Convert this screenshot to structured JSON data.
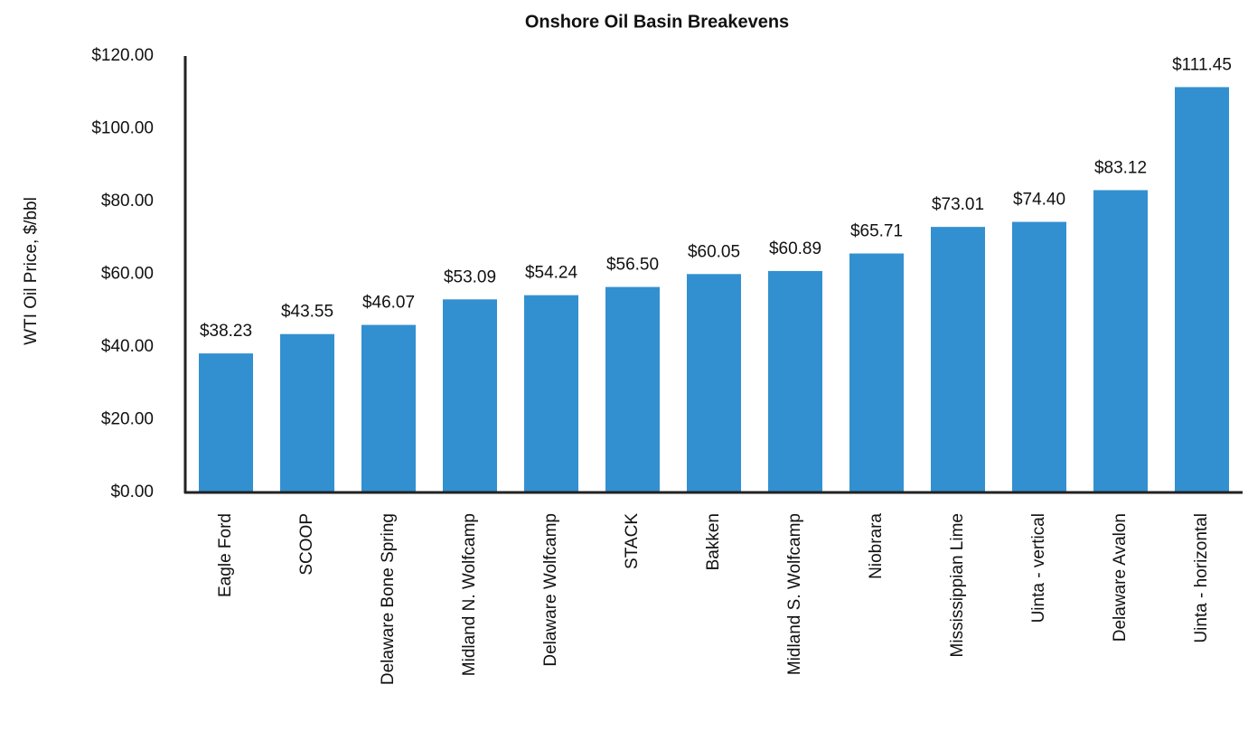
{
  "chart_data": {
    "type": "bar",
    "title": "Onshore Oil Basin Breakevens",
    "y_label": "WTI Oil Price, $/bbl",
    "categories": [
      "Eagle Ford",
      "SCOOP",
      "Delaware Bone Spring",
      "Midland N. Wolfcamp",
      "Delaware Wolfcamp",
      "STACK",
      "Bakken",
      "Midland S. Wolfcamp",
      "Niobrara",
      "Mississippian Lime",
      "Uinta - vertical",
      "Delaware Avalon",
      "Uinta - horizontal"
    ],
    "values": [
      38.23,
      43.55,
      46.07,
      53.09,
      54.24,
      56.5,
      60.05,
      60.89,
      65.71,
      73.01,
      74.4,
      83.12,
      111.45
    ],
    "value_labels": [
      "$38.23",
      "$43.55",
      "$46.07",
      "$53.09",
      "$54.24",
      "$56.50",
      "$60.05",
      "$60.89",
      "$65.71",
      "$73.01",
      "$74.40",
      "$83.12",
      "$111.45"
    ],
    "color": "#3390d0",
    "ylim": [
      0,
      120
    ],
    "yticks": [
      {
        "value": 0,
        "label": "$0.00"
      },
      {
        "value": 20,
        "label": "$20.00"
      },
      {
        "value": 40,
        "label": "$40.00"
      },
      {
        "value": 60,
        "label": "$60.00"
      },
      {
        "value": 80,
        "label": "$80.00"
      },
      {
        "value": 100,
        "label": "$100.00"
      },
      {
        "value": 120,
        "label": "$120.00"
      }
    ],
    "grid": false
  }
}
